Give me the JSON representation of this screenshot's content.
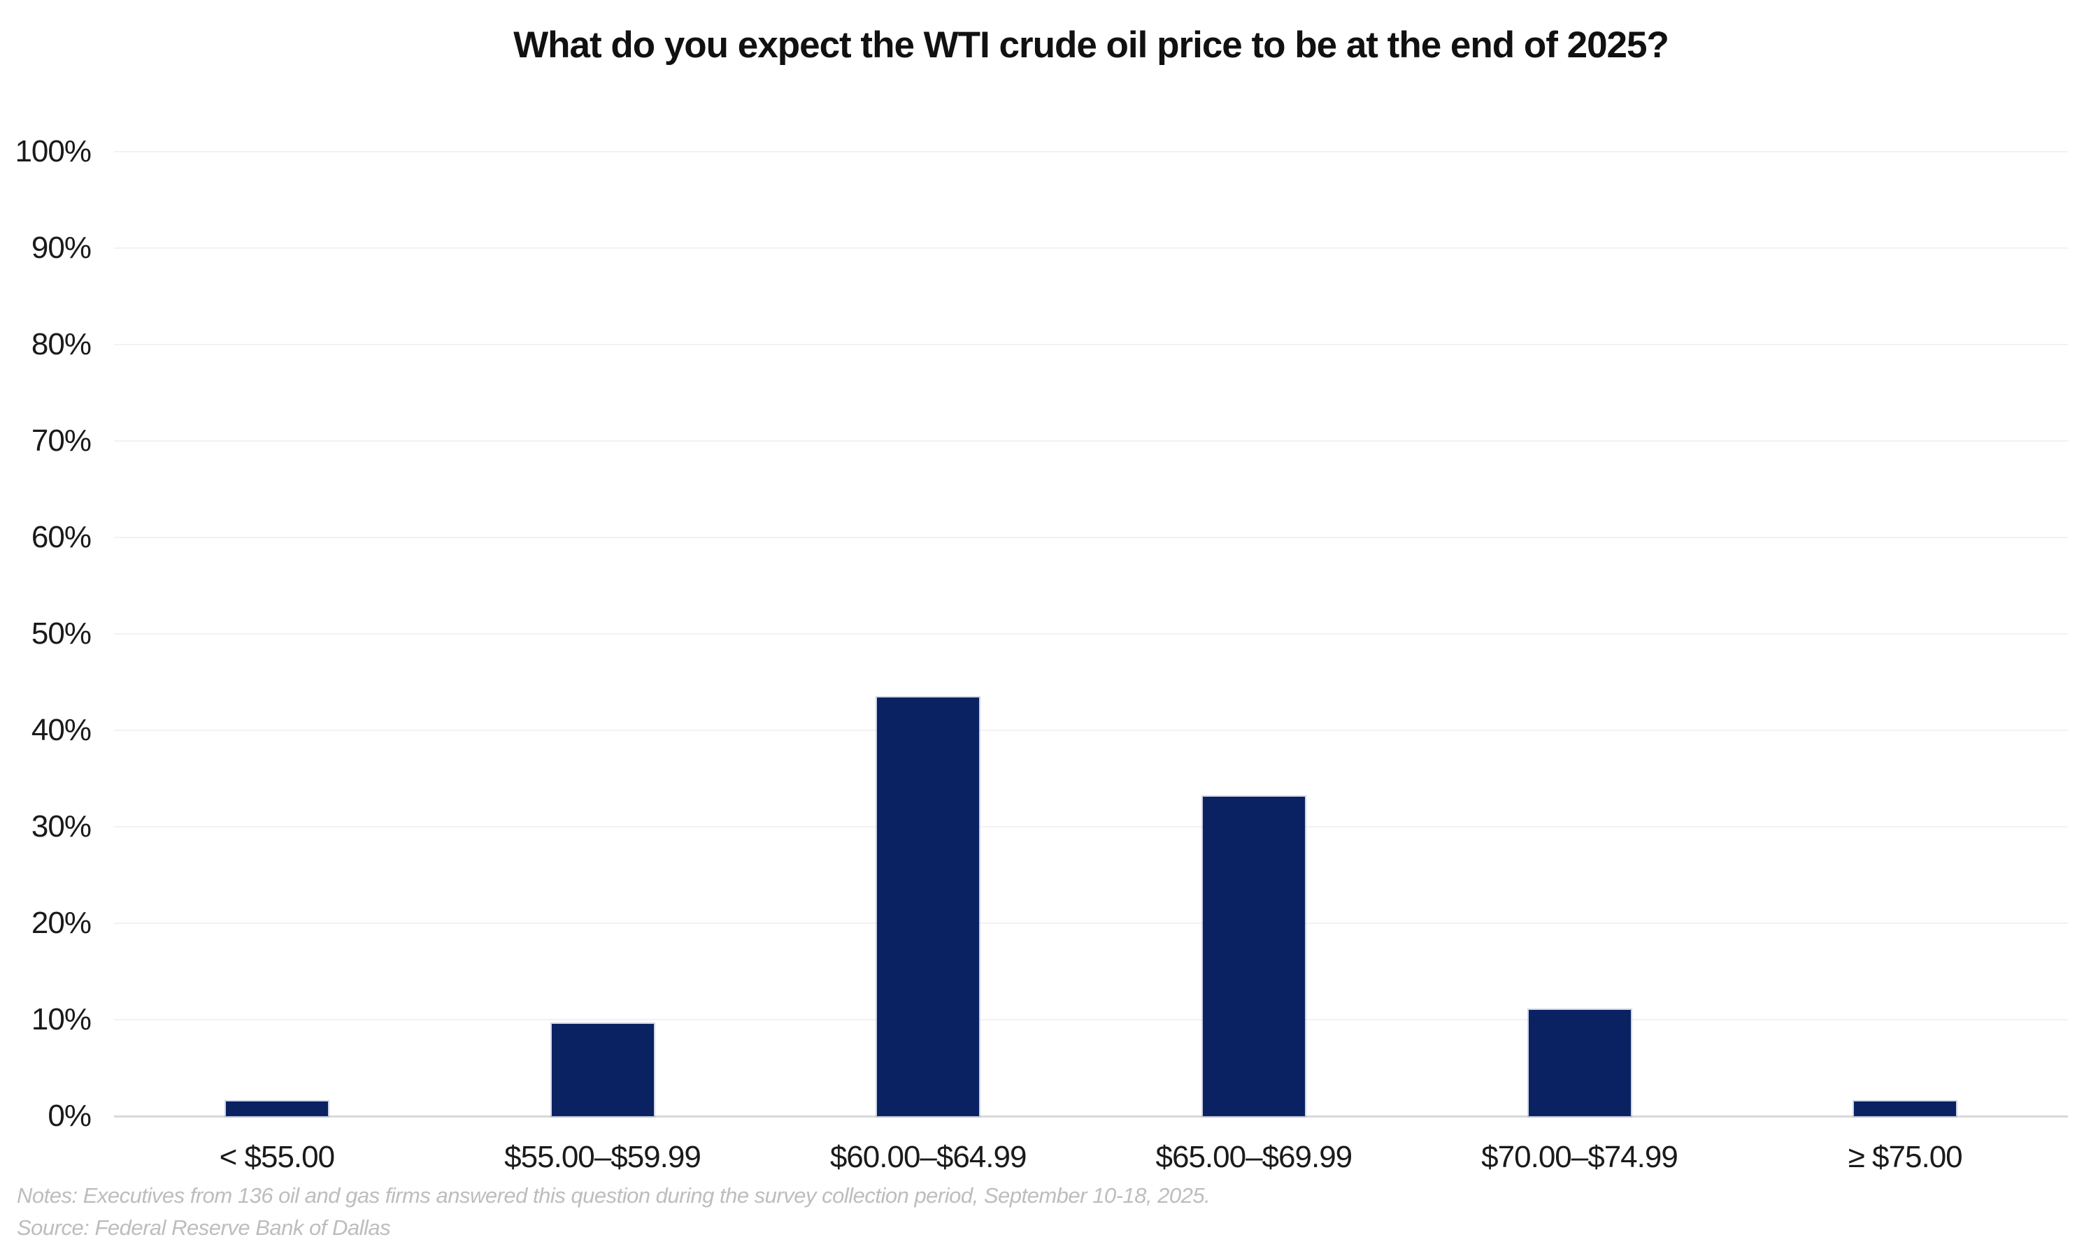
{
  "chart_data": {
    "type": "bar",
    "title": "What do you expect the WTI crude oil price to be at the end of 2025?",
    "categories": [
      "< $55.00",
      "$55.00–$59.99",
      "$60.00–$64.99",
      "$65.00–$69.99",
      "$70.00–$74.99",
      "≥ $75.00"
    ],
    "values": [
      1.5,
      9.6,
      43.4,
      33.1,
      11.0,
      1.5
    ],
    "unit": "percent",
    "xlabel": "",
    "ylabel": "",
    "ylim": [
      0,
      100
    ],
    "ytick_step": 10,
    "ytick_labels": [
      "0%",
      "10%",
      "20%",
      "30%",
      "40%",
      "50%",
      "60%",
      "70%",
      "80%",
      "90%",
      "100%"
    ],
    "grid": true,
    "legend": null,
    "bar_color": "#0a2262",
    "gridline_color": "#f2f2f2",
    "axis_line_color": "#d9d9d9",
    "text_color": "#1a1a1a",
    "footer_color": "#bdbdbd",
    "notes": "Notes: Executives from 136 oil and gas firms answered this question during the survey collection period, September 10-18, 2025.",
    "source": "Source: Federal Reserve Bank of Dallas"
  }
}
